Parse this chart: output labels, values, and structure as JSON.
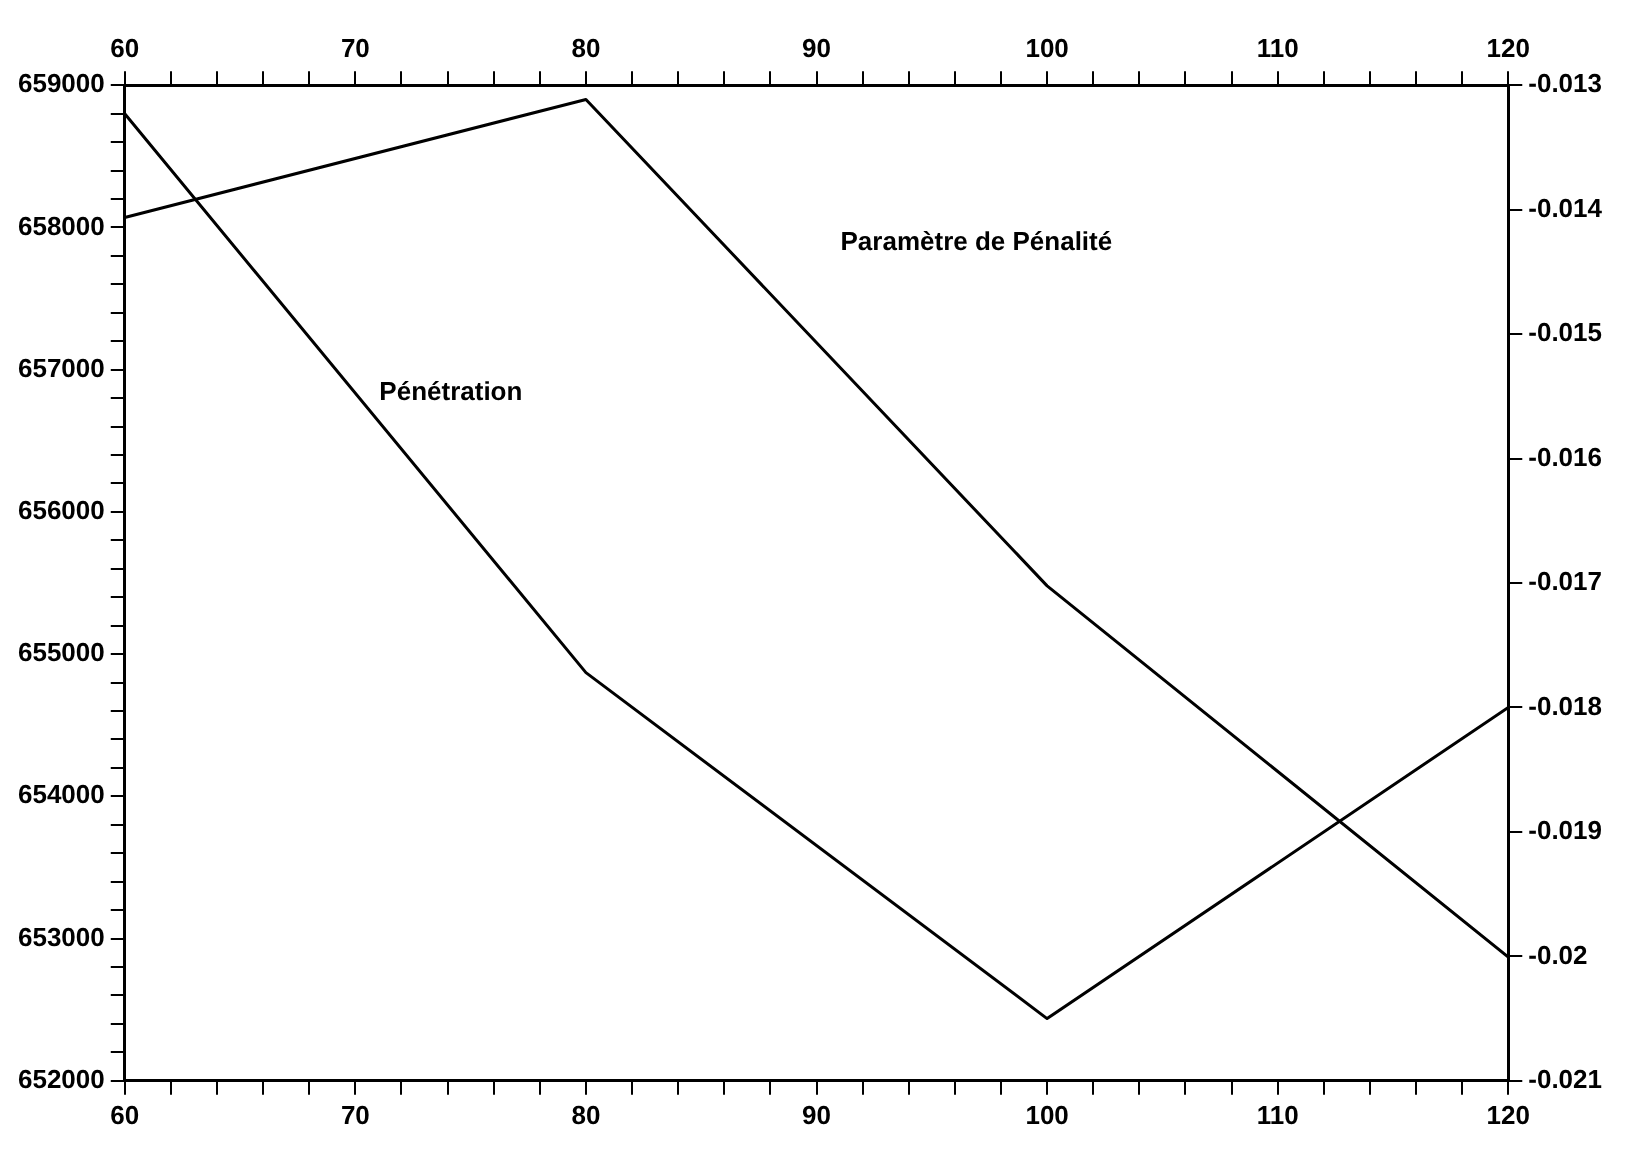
{
  "chart_data": {
    "type": "line",
    "x": [
      60,
      80,
      100,
      120
    ],
    "series": [
      {
        "name": "Paramètre de Pénalité",
        "color": "#000000",
        "values": [
          658070,
          658900,
          655480,
          652870
        ]
      },
      {
        "name": "Pénétration",
        "color": "#000000",
        "axis": "y2",
        "values": [
          -0.01323,
          -0.01772,
          -0.0205,
          -0.018
        ]
      }
    ],
    "xlim": [
      60,
      120
    ],
    "xticks": [
      60,
      {
        "value": 62,
        "label": null
      },
      {
        "value": 64,
        "label": null
      },
      {
        "value": 66,
        "label": null
      },
      {
        "value": 68,
        "label": null
      },
      70,
      {
        "value": 72,
        "label": null
      },
      {
        "value": 74,
        "label": null
      },
      {
        "value": 76,
        "label": null
      },
      {
        "value": 78,
        "label": null
      },
      80,
      {
        "value": 82,
        "label": null
      },
      {
        "value": 84,
        "label": null
      },
      {
        "value": 86,
        "label": null
      },
      {
        "value": 88,
        "label": null
      },
      90,
      {
        "value": 92,
        "label": null
      },
      {
        "value": 94,
        "label": null
      },
      {
        "value": 96,
        "label": null
      },
      {
        "value": 98,
        "label": null
      },
      100,
      {
        "value": 102,
        "label": null
      },
      {
        "value": 104,
        "label": null
      },
      {
        "value": 106,
        "label": null
      },
      {
        "value": 108,
        "label": null
      },
      110,
      {
        "value": 112,
        "label": null
      },
      {
        "value": 114,
        "label": null
      },
      {
        "value": 116,
        "label": null
      },
      {
        "value": 118,
        "label": null
      },
      120
    ],
    "x2lim": [
      60,
      120
    ],
    "x2ticks": [
      60,
      {
        "value": 62,
        "label": null
      },
      {
        "value": 64,
        "label": null
      },
      {
        "value": 66,
        "label": null
      },
      {
        "value": 68,
        "label": null
      },
      70,
      {
        "value": 72,
        "label": null
      },
      {
        "value": 74,
        "label": null
      },
      {
        "value": 76,
        "label": null
      },
      {
        "value": 78,
        "label": null
      },
      80,
      {
        "value": 82,
        "label": null
      },
      {
        "value": 84,
        "label": null
      },
      {
        "value": 86,
        "label": null
      },
      {
        "value": 88,
        "label": null
      },
      90,
      {
        "value": 92,
        "label": null
      },
      {
        "value": 94,
        "label": null
      },
      {
        "value": 96,
        "label": null
      },
      {
        "value": 98,
        "label": null
      },
      100,
      {
        "value": 102,
        "label": null
      },
      {
        "value": 104,
        "label": null
      },
      {
        "value": 106,
        "label": null
      },
      {
        "value": 108,
        "label": null
      },
      110,
      {
        "value": 112,
        "label": null
      },
      {
        "value": 114,
        "label": null
      },
      {
        "value": 116,
        "label": null
      },
      {
        "value": 118,
        "label": null
      },
      120
    ],
    "ylim": [
      652000,
      659000
    ],
    "yticks": [
      652000,
      {
        "value": 652200,
        "label": null
      },
      {
        "value": 652400,
        "label": null
      },
      {
        "value": 652600,
        "label": null
      },
      {
        "value": 652800,
        "label": null
      },
      653000,
      {
        "value": 653200,
        "label": null
      },
      {
        "value": 653400,
        "label": null
      },
      {
        "value": 653600,
        "label": null
      },
      {
        "value": 653800,
        "label": null
      },
      654000,
      {
        "value": 654200,
        "label": null
      },
      {
        "value": 654400,
        "label": null
      },
      {
        "value": 654600,
        "label": null
      },
      {
        "value": 654800,
        "label": null
      },
      655000,
      {
        "value": 655200,
        "label": null
      },
      {
        "value": 655400,
        "label": null
      },
      {
        "value": 655600,
        "label": null
      },
      {
        "value": 655800,
        "label": null
      },
      656000,
      {
        "value": 656200,
        "label": null
      },
      {
        "value": 656400,
        "label": null
      },
      {
        "value": 656600,
        "label": null
      },
      {
        "value": 656800,
        "label": null
      },
      657000,
      {
        "value": 657200,
        "label": null
      },
      {
        "value": 657400,
        "label": null
      },
      {
        "value": 657600,
        "label": null
      },
      {
        "value": 657800,
        "label": null
      },
      658000,
      {
        "value": 658200,
        "label": null
      },
      {
        "value": 658400,
        "label": null
      },
      {
        "value": 658600,
        "label": null
      },
      {
        "value": 658800,
        "label": null
      },
      659000
    ],
    "y2lim": [
      -0.021,
      -0.013
    ],
    "y2ticks": [
      -0.021,
      -0.02,
      -0.019,
      -0.018,
      -0.017,
      -0.016,
      -0.015,
      -0.014,
      -0.013
    ],
    "grid": false,
    "legend": false,
    "marker": "none",
    "line_style": "solid"
  }
}
